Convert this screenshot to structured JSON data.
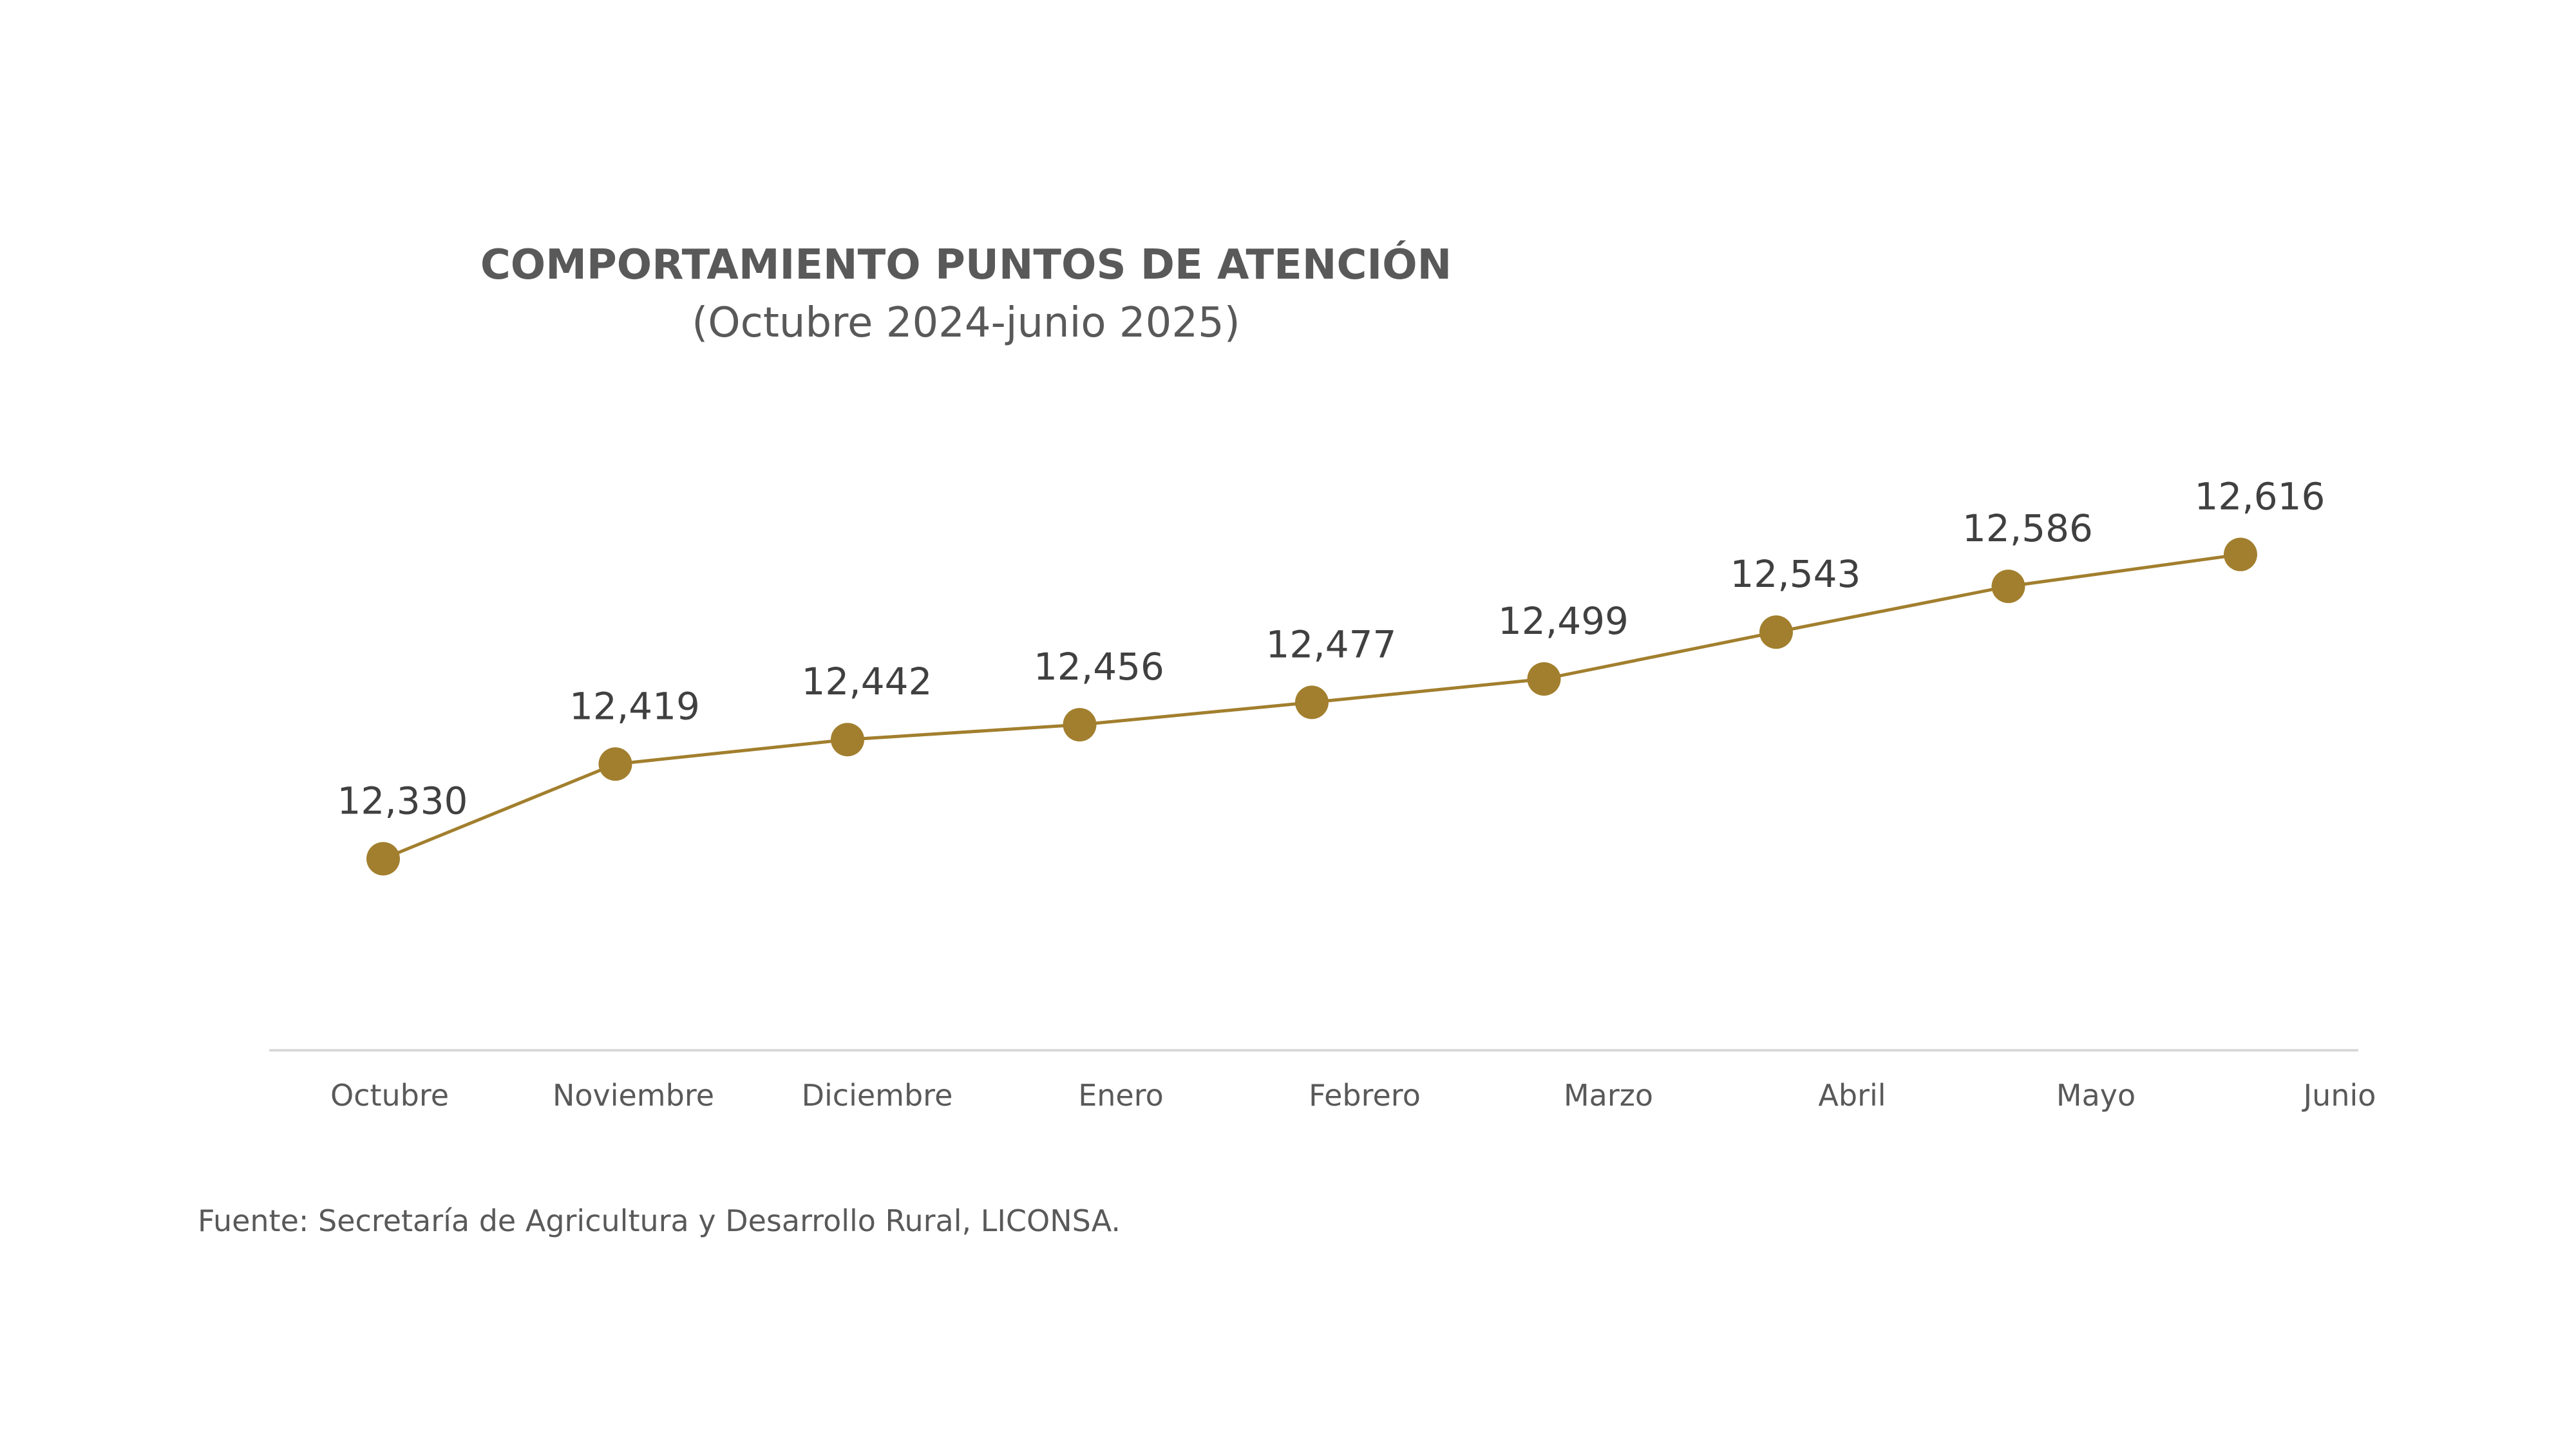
{
  "chart_data": {
    "type": "line",
    "title": "COMPORTAMIENTO PUNTOS DE ATENCIÓN",
    "subtitle": "(Octubre 2024-junio 2025)",
    "categories": [
      "Octubre",
      "Noviembre",
      "Diciembre",
      "Enero",
      "Febrero",
      "Marzo",
      "Abril",
      "Mayo",
      "Junio"
    ],
    "series": [
      {
        "values": [
          12330,
          12419,
          12442,
          12456,
          12477,
          12499,
          12543,
          12586,
          12616
        ],
        "labels": [
          "12,330",
          "12,419",
          "12,442",
          "12,456",
          "12,477",
          "12,499",
          "12,543",
          "12,586",
          "12,616"
        ],
        "color": "#A27F2E"
      }
    ],
    "ylim": [
      12150,
      12750
    ],
    "grid": false,
    "legend": "none"
  },
  "source_note": "Fuente: Secretaría de Agricultura y Desarrollo Rural, LICONSA.",
  "colors": {
    "series": "#A27F2E",
    "text": "#595959",
    "label_text": "#404040",
    "axis_line": "#D9D9D9"
  }
}
